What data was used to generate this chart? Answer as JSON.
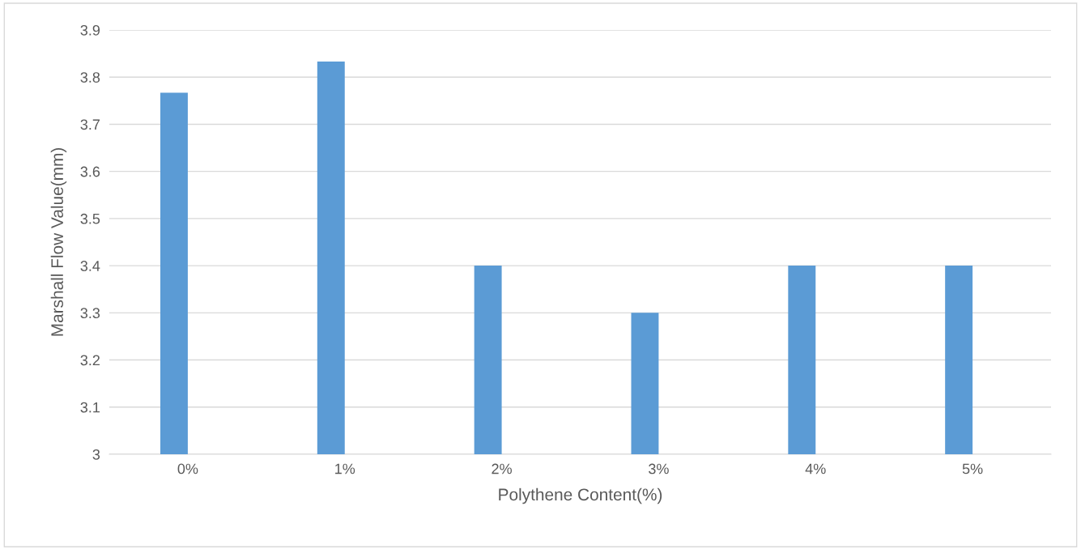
{
  "chart_data": {
    "type": "bar",
    "xlabel": "Polythene Content(%)",
    "ylabel": "Marshall Flow Value(mm)",
    "categories": [
      "0%",
      "1%",
      "2%",
      "3%",
      "4%",
      "5%"
    ],
    "series": [
      {
        "color": "#5b9bd5",
        "values": [
          3.767,
          3.833,
          3.4,
          3.3,
          3.4,
          3.4
        ]
      },
      {
        "color": "#ed7d31",
        "values": [
          null,
          null,
          null,
          null,
          null,
          null
        ]
      }
    ],
    "ylim": [
      3,
      3.9
    ],
    "yticks": [
      {
        "value": 3,
        "label": "3"
      },
      3.1,
      3.2,
      3.3,
      3.4,
      3.5,
      3.6,
      3.7,
      3.8,
      3.9
    ],
    "grid": "y"
  }
}
